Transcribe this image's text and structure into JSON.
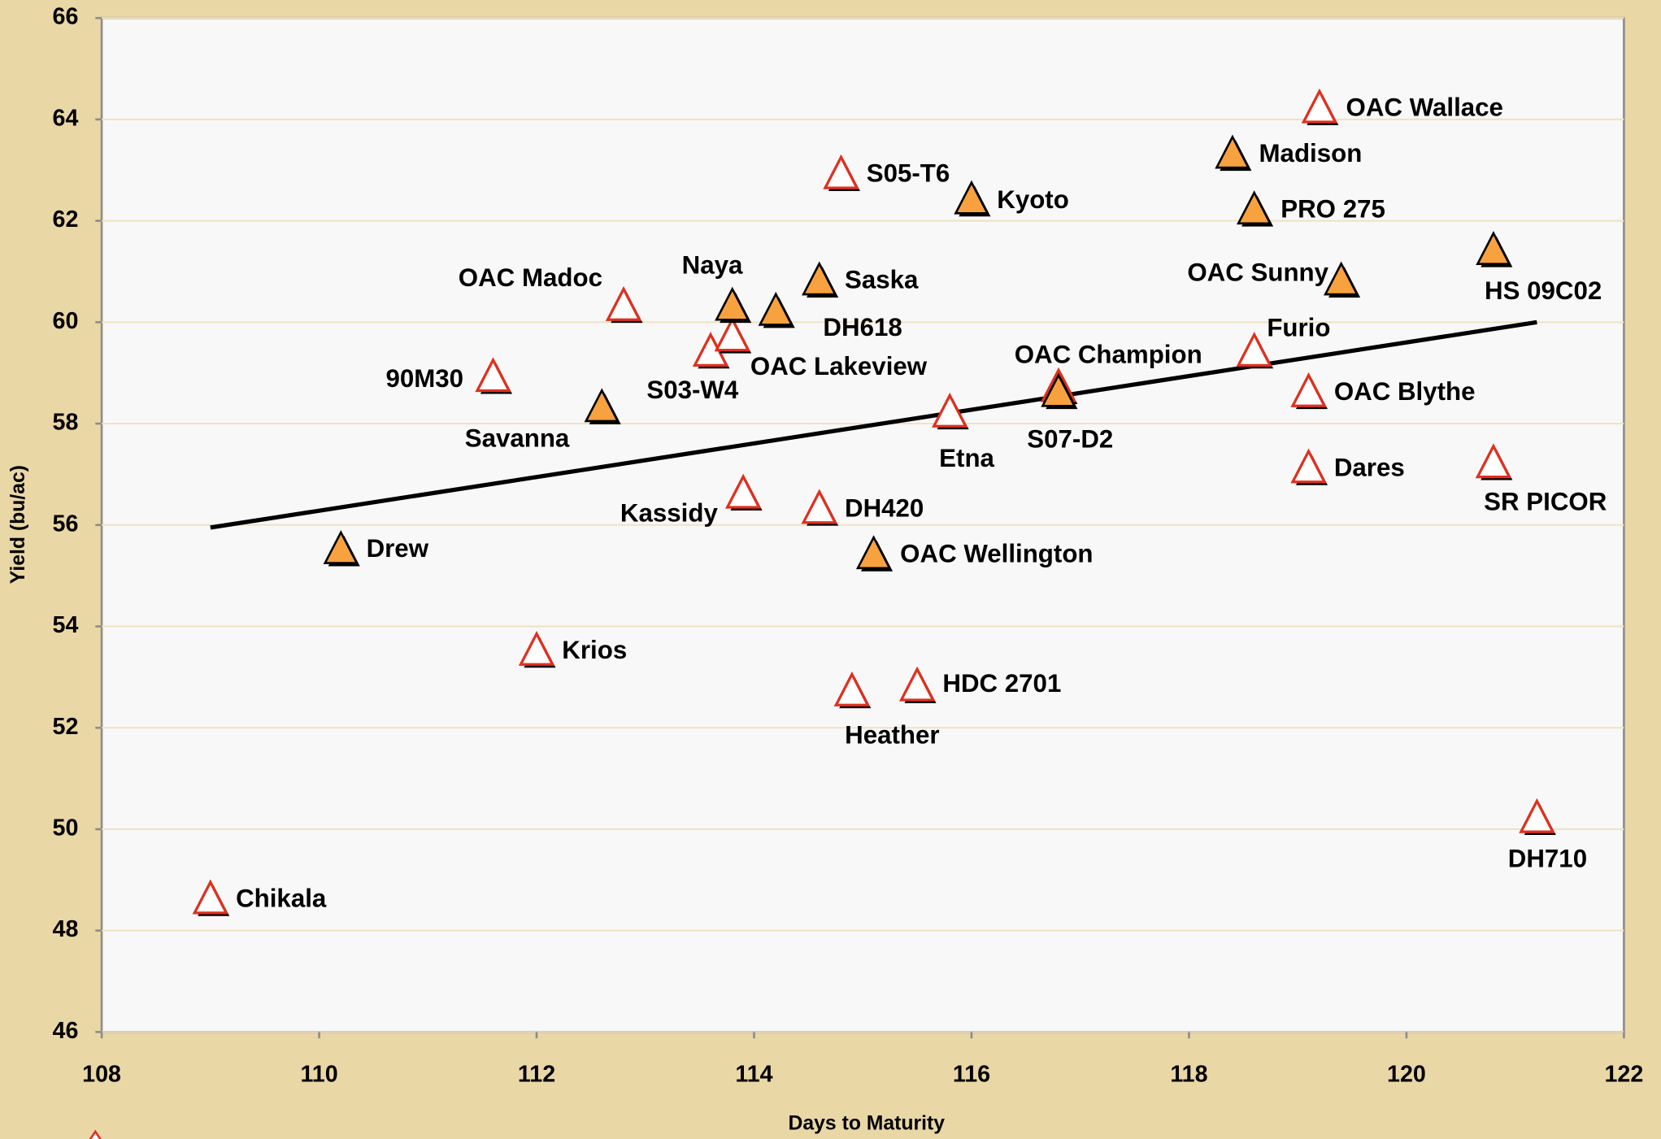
{
  "chart_data": {
    "type": "scatter",
    "x_label": "Days to Maturity",
    "y_label": "Yield (bu/ac)",
    "xlim": [
      108,
      122
    ],
    "ylim": [
      46,
      66
    ],
    "xticks": [
      108,
      110,
      112,
      114,
      116,
      118,
      120,
      122
    ],
    "yticks": [
      46,
      48,
      50,
      52,
      54,
      56,
      58,
      60,
      62,
      64,
      66
    ],
    "grid": true,
    "series": [
      {
        "color": "#e0301e",
        "marker": "open-triangle",
        "labels": [
          "Chikala",
          "Krios",
          "90M30",
          "OAC Madoc",
          "S03-W4",
          "OAC Lakeview",
          "Kassidy",
          "DH420",
          "S05-T6",
          "Heather",
          "HDC 2701",
          "Etna",
          "OAC Champion",
          "Furio",
          "OAC Blythe",
          "Dares",
          "OAC Wallace",
          "SR PICOR",
          "DH710"
        ],
        "x": [
          109.0,
          112.0,
          111.6,
          112.8,
          113.6,
          113.8,
          113.9,
          114.6,
          114.8,
          114.9,
          115.5,
          115.8,
          116.8,
          118.6,
          119.1,
          119.1,
          119.2,
          120.8,
          121.2
        ],
        "values": [
          48.6,
          53.5,
          58.9,
          60.3,
          59.4,
          59.7,
          56.6,
          56.3,
          62.9,
          52.7,
          52.8,
          58.2,
          58.7,
          59.4,
          58.6,
          57.1,
          64.2,
          57.2,
          50.2
        ]
      },
      {
        "color": "#f7a13f",
        "marker": "filled-triangle",
        "labels": [
          "Drew",
          "Savanna",
          "Naya",
          "DH618",
          "Saska",
          "OAC Wellington",
          "Kyoto",
          "S07-D2",
          "Madison",
          "PRO 275",
          "OAC Sunny",
          "HS 09C02"
        ],
        "x": [
          110.2,
          112.6,
          113.8,
          114.2,
          114.6,
          115.1,
          116.0,
          116.8,
          118.4,
          118.6,
          119.4,
          120.8
        ],
        "values": [
          55.5,
          58.3,
          60.3,
          60.2,
          60.8,
          55.4,
          62.4,
          58.6,
          63.3,
          62.2,
          60.8,
          61.4
        ]
      }
    ],
    "trendline": {
      "color": "#000000",
      "x": [
        109.0,
        121.2
      ],
      "values": [
        55.95,
        60.0
      ]
    }
  }
}
